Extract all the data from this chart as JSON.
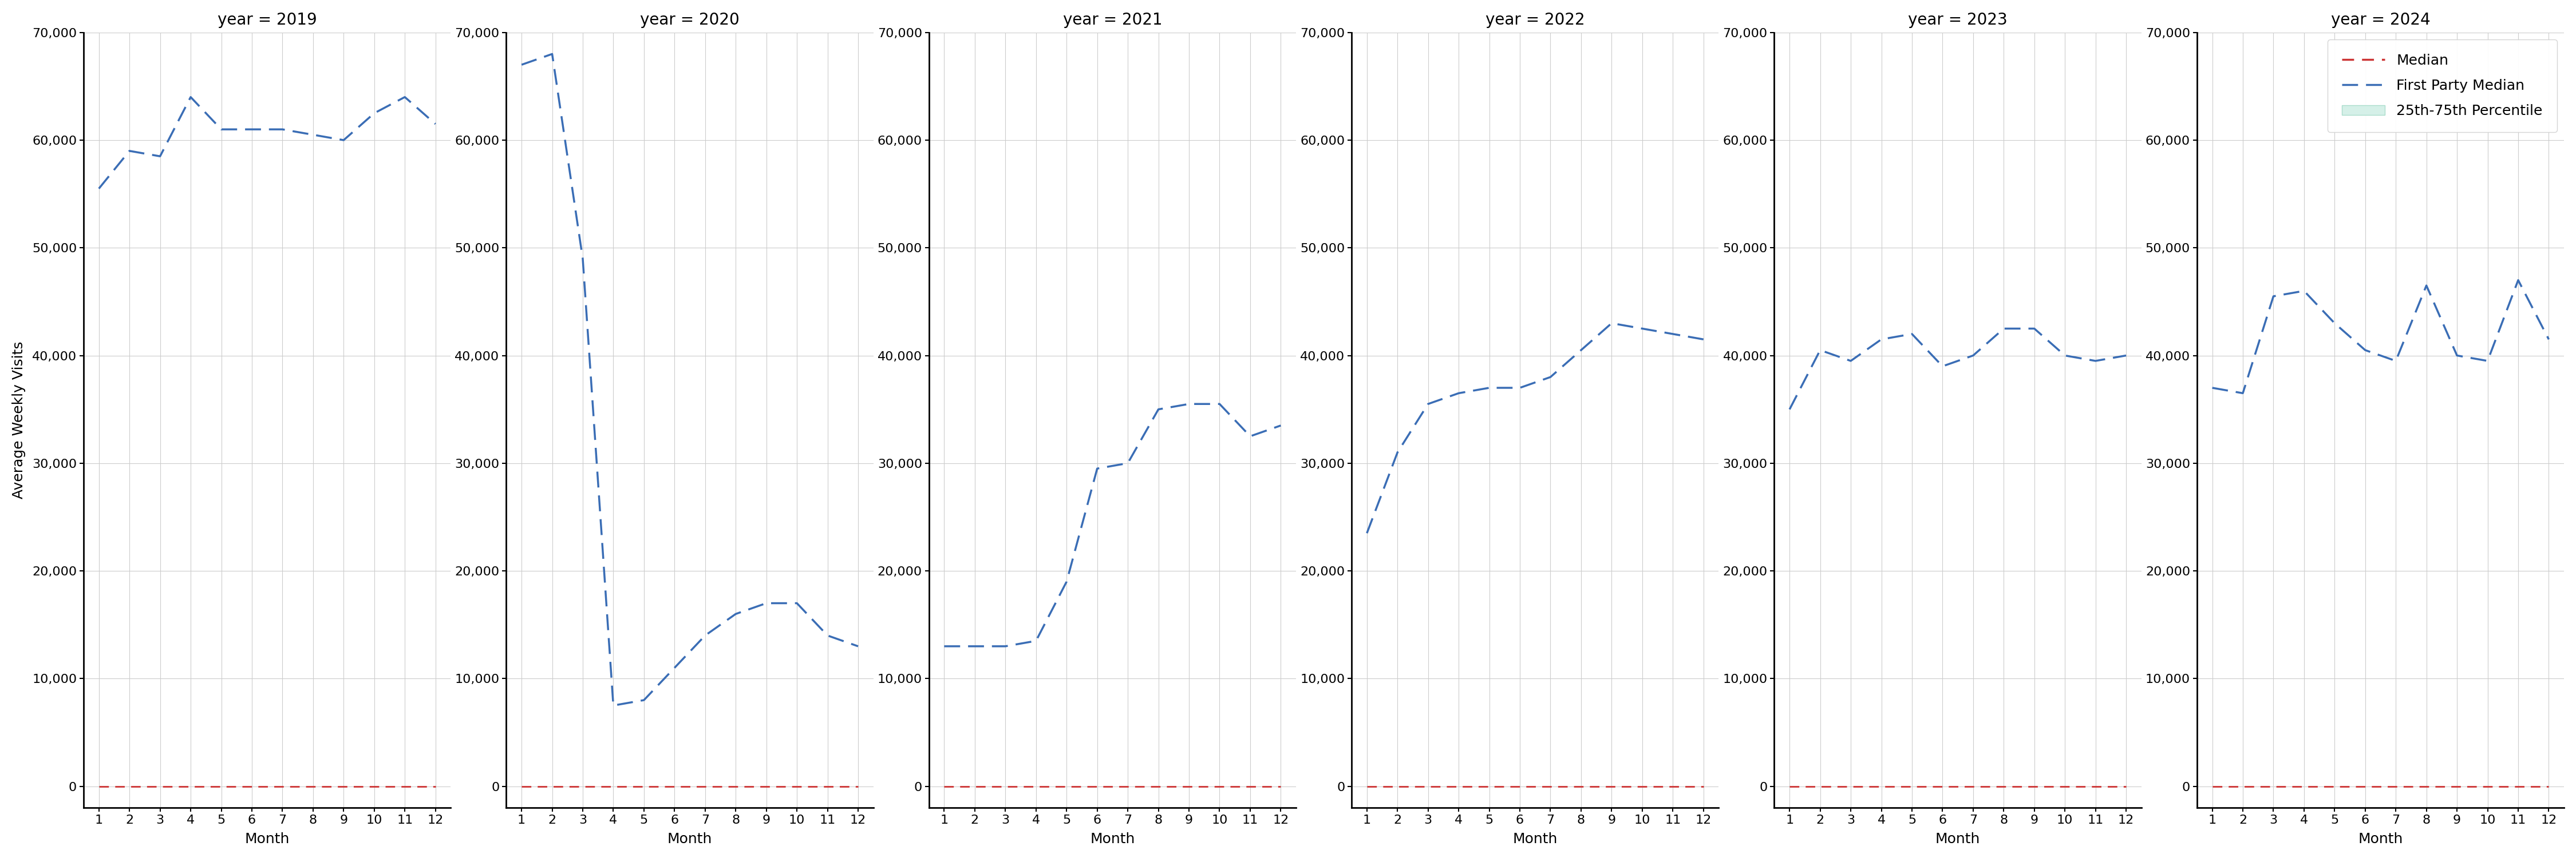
{
  "years": [
    2019,
    2020,
    2021,
    2022,
    2023,
    2024
  ],
  "months": [
    1,
    2,
    3,
    4,
    5,
    6,
    7,
    8,
    9,
    10,
    11,
    12
  ],
  "fp_median": {
    "2019": [
      55500,
      59000,
      58500,
      64000,
      61000,
      61000,
      61000,
      60500,
      60000,
      62500,
      64000,
      61500
    ],
    "2020": [
      67000,
      68000,
      49000,
      7500,
      8000,
      11000,
      14000,
      16000,
      17000,
      17000,
      14000,
      13000
    ],
    "2021": [
      13000,
      13000,
      13000,
      13500,
      19000,
      29500,
      30000,
      35000,
      35500,
      35500,
      32500,
      33500
    ],
    "2022": [
      23500,
      31000,
      35500,
      36500,
      37000,
      37000,
      38000,
      40500,
      43000,
      42500,
      42000,
      41500
    ],
    "2023": [
      35000,
      40500,
      39500,
      41500,
      42000,
      39000,
      40000,
      42500,
      42500,
      40000,
      39500,
      40000
    ],
    "2024": [
      37000,
      36500,
      45500,
      46000,
      43000,
      40500,
      39500,
      46500,
      40000,
      39500,
      47000,
      41500
    ]
  },
  "median": {
    "2019": [
      0,
      0,
      0,
      0,
      0,
      0,
      0,
      0,
      0,
      0,
      0,
      0
    ],
    "2020": [
      0,
      0,
      0,
      0,
      0,
      0,
      0,
      0,
      0,
      0,
      0,
      0
    ],
    "2021": [
      0,
      0,
      0,
      0,
      0,
      0,
      0,
      0,
      0,
      0,
      0,
      0
    ],
    "2022": [
      0,
      0,
      0,
      0,
      0,
      0,
      0,
      0,
      0,
      0,
      0,
      0
    ],
    "2023": [
      0,
      0,
      0,
      0,
      0,
      0,
      0,
      0,
      0,
      0,
      0,
      0
    ],
    "2024": [
      0,
      0,
      0,
      0,
      0,
      0,
      0,
      0,
      0,
      0,
      0,
      0
    ]
  },
  "fp_color": "#3A6DB5",
  "median_color": "#CC3333",
  "band_color": "#D5F0E8",
  "ylim": [
    -2000,
    70000
  ],
  "yticks": [
    0,
    10000,
    20000,
    30000,
    40000,
    50000,
    60000,
    70000
  ],
  "ylabel": "Average Weekly Visits",
  "xlabel": "Month",
  "title_prefix": "year = ",
  "legend_labels": [
    "Median",
    "First Party Median",
    "25th-75th Percentile"
  ],
  "title_fontsize": 20,
  "label_fontsize": 18,
  "tick_fontsize": 16,
  "legend_fontsize": 18
}
